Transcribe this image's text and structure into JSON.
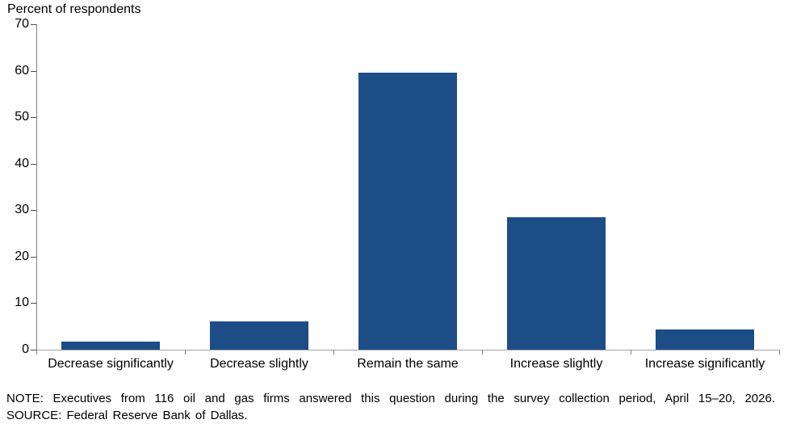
{
  "page": {
    "background": "#ffffff",
    "text_color": "#000000"
  },
  "chart_data": {
    "type": "bar",
    "title": "Percent of respondents",
    "categories": [
      "Decrease significantly",
      "Decrease slightly",
      "Remain the same",
      "Increase slightly",
      "Increase significantly"
    ],
    "values": [
      1.7,
      6.0,
      59.5,
      28.4,
      4.3
    ],
    "xlabel": "",
    "ylabel": "Percent of respondents",
    "ylim": [
      0,
      70
    ],
    "yticks": [
      0,
      10,
      20,
      30,
      40,
      50,
      60,
      70
    ],
    "grid": "off",
    "legend": "none",
    "bar_color": "#1C4D87",
    "axis_color": "#808080"
  },
  "notes": {
    "note_line": "NOTE: Executives from 116 oil and gas firms answered this question during the survey collection period, April 15–20, 2026.",
    "source_line": "SOURCE: Federal Reserve Bank of Dallas."
  }
}
